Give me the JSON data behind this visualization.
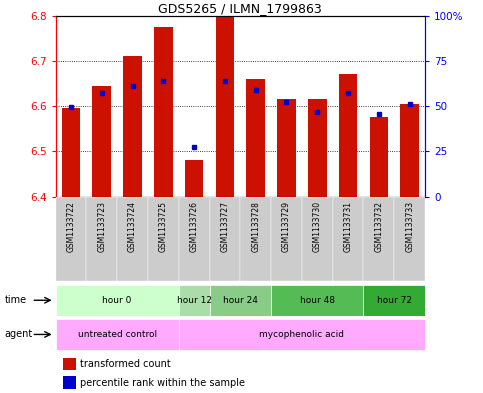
{
  "title": "GDS5265 / ILMN_1799863",
  "samples": [
    "GSM1133722",
    "GSM1133723",
    "GSM1133724",
    "GSM1133725",
    "GSM1133726",
    "GSM1133727",
    "GSM1133728",
    "GSM1133729",
    "GSM1133730",
    "GSM1133731",
    "GSM1133732",
    "GSM1133733"
  ],
  "bar_values": [
    6.595,
    6.645,
    6.71,
    6.775,
    6.48,
    6.8,
    6.66,
    6.615,
    6.615,
    6.67,
    6.575,
    6.605
  ],
  "percentile_values": [
    6.598,
    6.63,
    6.645,
    6.655,
    6.51,
    6.655,
    6.635,
    6.608,
    6.588,
    6.63,
    6.583,
    6.605
  ],
  "ylim": [
    6.4,
    6.8
  ],
  "bar_bottom": 6.4,
  "bar_color": "#cc1100",
  "percentile_color": "#0000cc",
  "time_groups": [
    {
      "label": "hour 0",
      "start": 0,
      "end": 4,
      "color": "#ccffcc"
    },
    {
      "label": "hour 12",
      "start": 4,
      "end": 5,
      "color": "#aaddaa"
    },
    {
      "label": "hour 24",
      "start": 5,
      "end": 7,
      "color": "#88cc88"
    },
    {
      "label": "hour 48",
      "start": 7,
      "end": 10,
      "color": "#55bb55"
    },
    {
      "label": "hour 72",
      "start": 10,
      "end": 12,
      "color": "#33aa33"
    }
  ],
  "agent_groups": [
    {
      "label": "untreated control",
      "start": 0,
      "end": 4,
      "color": "#ffaaff"
    },
    {
      "label": "mycophenolic acid",
      "start": 4,
      "end": 12,
      "color": "#ffaaff"
    }
  ],
  "legend_bar_label": "transformed count",
  "legend_pct_label": "percentile rank within the sample",
  "label_time": "time",
  "label_agent": "agent",
  "gray_bg": "#cccccc",
  "yticks_left": [
    6.4,
    6.5,
    6.6,
    6.7,
    6.8
  ],
  "yticks_right_labels": [
    "0",
    "25",
    "50",
    "75",
    "100%"
  ]
}
